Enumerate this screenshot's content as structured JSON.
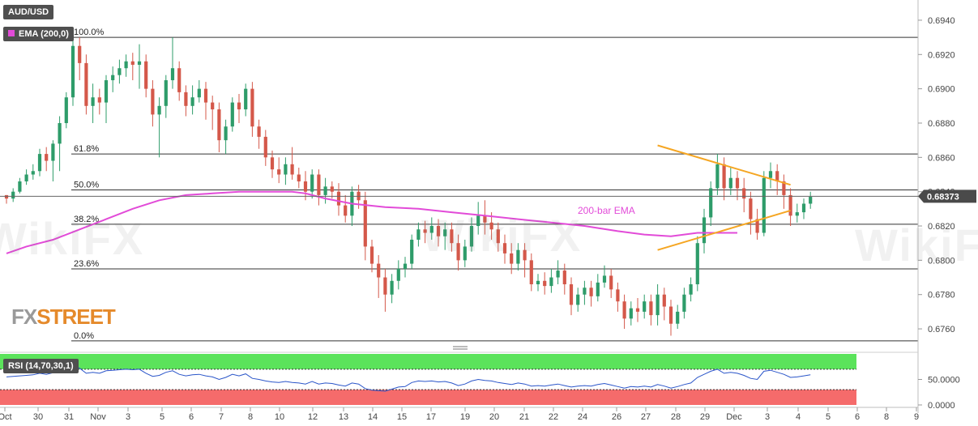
{
  "header": {
    "symbol": "AUD/USD",
    "ema_legend": "EMA (200,0)",
    "rsi_legend": "RSI (14,70,30,1)"
  },
  "brand": {
    "part1": "FX",
    "part2": "STREET"
  },
  "watermark": "WikiFX",
  "colors": {
    "bull": "#2e9c6a",
    "bear": "#d4584a",
    "ema": "#e24bd8",
    "trendline": "#f5a623",
    "rsi_line": "#2a55c9",
    "rsi_overbought": "#5be35b",
    "rsi_oversold": "#f56b6b",
    "price_tag": "#4a4a4a"
  },
  "chart_data": {
    "type": "candlestick",
    "title": "AUD/USD",
    "price_ticks": [
      "0.6940",
      "0.6920",
      "0.6900",
      "0.6880",
      "0.6860",
      "0.6840",
      "0.6820",
      "0.6800",
      "0.6780",
      "0.6760"
    ],
    "ylim": [
      0.6752,
      0.6948
    ],
    "current_price": "0.68373",
    "x_tick_labels": [
      "Oct",
      "30",
      "31",
      "Nov",
      "3",
      "5",
      "6",
      "7",
      "8",
      "10",
      "12",
      "13",
      "14",
      "15",
      "17",
      "19",
      "20",
      "21",
      "22",
      "24",
      "26",
      "27",
      "28",
      "29",
      "Dec",
      "3",
      "4",
      "5",
      "6",
      "8",
      "9"
    ],
    "fibonacci": [
      {
        "label": "100.0%",
        "level": 0.693
      },
      {
        "label": "61.8%",
        "level": 0.6862
      },
      {
        "label": "50.0%",
        "level": 0.6841
      },
      {
        "label": "38.2%",
        "level": 0.6821
      },
      {
        "label": "23.6%",
        "level": 0.6795
      },
      {
        "label": "0.0%",
        "level": 0.6753
      }
    ],
    "ema_label": "200-bar EMA",
    "ema_points": [
      [
        0,
        0.6804
      ],
      [
        3,
        0.6808
      ],
      [
        7,
        0.6812
      ],
      [
        11,
        0.6818
      ],
      [
        15,
        0.6824
      ],
      [
        19,
        0.683
      ],
      [
        23,
        0.6835
      ],
      [
        27,
        0.6838
      ],
      [
        31,
        0.6839
      ],
      [
        35,
        0.684
      ],
      [
        39,
        0.684
      ],
      [
        43,
        0.684
      ],
      [
        45,
        0.6839
      ],
      [
        48,
        0.6836
      ],
      [
        52,
        0.6833
      ],
      [
        57,
        0.6831
      ],
      [
        62,
        0.683
      ],
      [
        67,
        0.6828
      ],
      [
        72,
        0.6826
      ],
      [
        77,
        0.6824
      ],
      [
        82,
        0.6822
      ],
      [
        87,
        0.682
      ],
      [
        92,
        0.6817
      ],
      [
        96,
        0.6815
      ],
      [
        100,
        0.6814
      ],
      [
        104,
        0.6816
      ],
      [
        108,
        0.6816
      ],
      [
        110,
        0.6816
      ]
    ],
    "trendlines": [
      {
        "from": [
          98,
          0.6867
        ],
        "to": [
          118,
          0.6844
        ]
      },
      {
        "from": [
          98,
          0.6806
        ],
        "to": [
          118,
          0.6829
        ]
      }
    ],
    "candles": [
      [
        0.6838,
        0.6836,
        0.6838,
        0.6833
      ],
      [
        0.6836,
        0.684,
        0.6842,
        0.6834
      ],
      [
        0.684,
        0.6846,
        0.6848,
        0.6839
      ],
      [
        0.6846,
        0.685,
        0.6853,
        0.6844
      ],
      [
        0.685,
        0.6852,
        0.6856,
        0.6847
      ],
      [
        0.6852,
        0.6862,
        0.6865,
        0.6849
      ],
      [
        0.6862,
        0.6858,
        0.6866,
        0.6852
      ],
      [
        0.6858,
        0.6868,
        0.687,
        0.6846
      ],
      [
        0.6868,
        0.688,
        0.6884,
        0.6852
      ],
      [
        0.688,
        0.6895,
        0.6898,
        0.6877
      ],
      [
        0.6895,
        0.6925,
        0.6928,
        0.689
      ],
      [
        0.6925,
        0.6915,
        0.693,
        0.6905
      ],
      [
        0.6915,
        0.689,
        0.692,
        0.6885
      ],
      [
        0.689,
        0.6895,
        0.6903,
        0.688
      ],
      [
        0.6895,
        0.6892,
        0.69,
        0.6885
      ],
      [
        0.6892,
        0.6905,
        0.6908,
        0.688
      ],
      [
        0.6905,
        0.6908,
        0.6913,
        0.6898
      ],
      [
        0.6908,
        0.6912,
        0.6917,
        0.6903
      ],
      [
        0.6912,
        0.6916,
        0.692,
        0.6907
      ],
      [
        0.6916,
        0.6914,
        0.6921,
        0.6905
      ],
      [
        0.6914,
        0.6916,
        0.6926,
        0.69
      ],
      [
        0.6916,
        0.69,
        0.692,
        0.6895
      ],
      [
        0.69,
        0.6885,
        0.6905,
        0.6878
      ],
      [
        0.6885,
        0.689,
        0.6895,
        0.686
      ],
      [
        0.689,
        0.6905,
        0.6908,
        0.6883
      ],
      [
        0.6905,
        0.6912,
        0.693,
        0.69
      ],
      [
        0.6912,
        0.6898,
        0.6916,
        0.6893
      ],
      [
        0.6898,
        0.689,
        0.6902,
        0.6884
      ],
      [
        0.689,
        0.6895,
        0.6902,
        0.6885
      ],
      [
        0.6895,
        0.69,
        0.6905,
        0.6892
      ],
      [
        0.69,
        0.6892,
        0.6904,
        0.6882
      ],
      [
        0.6892,
        0.6888,
        0.6896,
        0.6876
      ],
      [
        0.6888,
        0.687,
        0.6892,
        0.6863
      ],
      [
        0.687,
        0.6878,
        0.6882,
        0.6862
      ],
      [
        0.6878,
        0.6892,
        0.6895,
        0.6875
      ],
      [
        0.6892,
        0.6888,
        0.6897,
        0.688
      ],
      [
        0.6888,
        0.69,
        0.6903,
        0.6884
      ],
      [
        0.69,
        0.6878,
        0.6904,
        0.6872
      ],
      [
        0.6878,
        0.6872,
        0.6882,
        0.6865
      ],
      [
        0.6872,
        0.686,
        0.6876,
        0.6855
      ],
      [
        0.686,
        0.6853,
        0.6864,
        0.6848
      ],
      [
        0.6853,
        0.685,
        0.686,
        0.6845
      ],
      [
        0.685,
        0.6856,
        0.686,
        0.6844
      ],
      [
        0.6856,
        0.685,
        0.6866,
        0.6847
      ],
      [
        0.685,
        0.6846,
        0.6854,
        0.6842
      ],
      [
        0.6846,
        0.684,
        0.6852,
        0.6835
      ],
      [
        0.684,
        0.685,
        0.6853,
        0.6836
      ],
      [
        0.685,
        0.6838,
        0.6853,
        0.6832
      ],
      [
        0.6838,
        0.6843,
        0.6848,
        0.6833
      ],
      [
        0.6843,
        0.684,
        0.6846,
        0.6836
      ],
      [
        0.684,
        0.6832,
        0.6845,
        0.6826
      ],
      [
        0.6832,
        0.6826,
        0.6838,
        0.6822
      ],
      [
        0.6826,
        0.684,
        0.6843,
        0.682
      ],
      [
        0.684,
        0.6835,
        0.6844,
        0.683
      ],
      [
        0.6835,
        0.6808,
        0.684,
        0.68
      ],
      [
        0.6808,
        0.6798,
        0.6812,
        0.6793
      ],
      [
        0.6798,
        0.679,
        0.6803,
        0.6778
      ],
      [
        0.679,
        0.678,
        0.6795,
        0.677
      ],
      [
        0.678,
        0.6788,
        0.6792,
        0.6775
      ],
      [
        0.6788,
        0.6795,
        0.68,
        0.6783
      ],
      [
        0.6795,
        0.6798,
        0.6802,
        0.679
      ],
      [
        0.6798,
        0.6812,
        0.6815,
        0.6795
      ],
      [
        0.6812,
        0.6818,
        0.6822,
        0.6808
      ],
      [
        0.6818,
        0.6816,
        0.6823,
        0.681
      ],
      [
        0.6816,
        0.682,
        0.6825,
        0.6812
      ],
      [
        0.682,
        0.6814,
        0.6824,
        0.6808
      ],
      [
        0.6814,
        0.6818,
        0.6822,
        0.6806
      ],
      [
        0.6818,
        0.681,
        0.6822,
        0.6805
      ],
      [
        0.681,
        0.68,
        0.6815,
        0.6794
      ],
      [
        0.68,
        0.6808,
        0.6812,
        0.6796
      ],
      [
        0.6808,
        0.682,
        0.6825,
        0.6805
      ],
      [
        0.682,
        0.6826,
        0.6834,
        0.6815
      ],
      [
        0.6826,
        0.6822,
        0.6835,
        0.6815
      ],
      [
        0.6822,
        0.6818,
        0.6828,
        0.6812
      ],
      [
        0.6818,
        0.681,
        0.6822,
        0.6805
      ],
      [
        0.681,
        0.6804,
        0.6815,
        0.6798
      ],
      [
        0.6804,
        0.6798,
        0.681,
        0.6792
      ],
      [
        0.6798,
        0.6806,
        0.681,
        0.6794
      ],
      [
        0.6806,
        0.68,
        0.681,
        0.679
      ],
      [
        0.68,
        0.6786,
        0.6804,
        0.6782
      ],
      [
        0.6786,
        0.6788,
        0.6792,
        0.6782
      ],
      [
        0.6788,
        0.6785,
        0.6793,
        0.678
      ],
      [
        0.6785,
        0.679,
        0.6795,
        0.6781
      ],
      [
        0.679,
        0.6794,
        0.68,
        0.6786
      ],
      [
        0.6794,
        0.6786,
        0.6798,
        0.678
      ],
      [
        0.6786,
        0.6774,
        0.679,
        0.6768
      ],
      [
        0.6774,
        0.678,
        0.6784,
        0.677
      ],
      [
        0.678,
        0.6784,
        0.6788,
        0.6774
      ],
      [
        0.6784,
        0.6779,
        0.6788,
        0.6773
      ],
      [
        0.6779,
        0.6787,
        0.6792,
        0.6776
      ],
      [
        0.6787,
        0.6791,
        0.6797,
        0.6784
      ],
      [
        0.6791,
        0.6783,
        0.6795,
        0.6778
      ],
      [
        0.6783,
        0.6776,
        0.6787,
        0.677
      ],
      [
        0.6776,
        0.6766,
        0.678,
        0.676
      ],
      [
        0.6766,
        0.6772,
        0.6776,
        0.6762
      ],
      [
        0.6772,
        0.677,
        0.6778,
        0.6764
      ],
      [
        0.677,
        0.6776,
        0.678,
        0.6766
      ],
      [
        0.6776,
        0.6768,
        0.678,
        0.6762
      ],
      [
        0.6768,
        0.678,
        0.6786,
        0.6762
      ],
      [
        0.678,
        0.6773,
        0.6784,
        0.6765
      ],
      [
        0.6773,
        0.6763,
        0.6777,
        0.6756
      ],
      [
        0.6763,
        0.677,
        0.6774,
        0.676
      ],
      [
        0.677,
        0.678,
        0.6784,
        0.6766
      ],
      [
        0.678,
        0.6786,
        0.679,
        0.6776
      ],
      [
        0.6786,
        0.681,
        0.6814,
        0.6782
      ],
      [
        0.681,
        0.6825,
        0.683,
        0.6804
      ],
      [
        0.6825,
        0.6842,
        0.6846,
        0.682
      ],
      [
        0.6842,
        0.6856,
        0.6862,
        0.6838
      ],
      [
        0.6856,
        0.6842,
        0.686,
        0.6835
      ],
      [
        0.6842,
        0.6848,
        0.6854,
        0.6838
      ],
      [
        0.6848,
        0.6842,
        0.6852,
        0.6835
      ],
      [
        0.6842,
        0.6836,
        0.6848,
        0.6828
      ],
      [
        0.6836,
        0.6824,
        0.684,
        0.6815
      ],
      [
        0.6824,
        0.6816,
        0.683,
        0.6812
      ],
      [
        0.6816,
        0.6848,
        0.6852,
        0.6814
      ],
      [
        0.6848,
        0.6852,
        0.6857,
        0.6842
      ],
      [
        0.6852,
        0.6846,
        0.6856,
        0.6838
      ],
      [
        0.6846,
        0.6838,
        0.685,
        0.683
      ],
      [
        0.6838,
        0.6826,
        0.6842,
        0.682
      ],
      [
        0.6826,
        0.6828,
        0.6833,
        0.6822
      ],
      [
        0.6828,
        0.6833,
        0.6836,
        0.6824
      ],
      [
        0.6833,
        0.6837,
        0.684,
        0.683
      ]
    ],
    "rsi": {
      "levels": {
        "overbought": 70,
        "oversold": 30
      },
      "ticks": [
        "50.0000",
        "0.0000"
      ],
      "ylim": [
        0,
        100
      ],
      "values": [
        55,
        56,
        57,
        58,
        59,
        62,
        60,
        63,
        66,
        70,
        78,
        72,
        62,
        64,
        62,
        67,
        68,
        69,
        70,
        69,
        70,
        62,
        56,
        58,
        64,
        67,
        60,
        57,
        59,
        60,
        57,
        55,
        50,
        54,
        60,
        57,
        61,
        52,
        50,
        47,
        45,
        44,
        46,
        44,
        43,
        41,
        46,
        41,
        43,
        42,
        39,
        37,
        43,
        41,
        32,
        29,
        28,
        27,
        31,
        35,
        36,
        44,
        47,
        46,
        47,
        45,
        46,
        43,
        38,
        41,
        47,
        50,
        48,
        47,
        44,
        42,
        40,
        43,
        41,
        37,
        38,
        37,
        39,
        41,
        38,
        35,
        37,
        38,
        37,
        40,
        42,
        39,
        36,
        33,
        36,
        35,
        37,
        35,
        40,
        37,
        33,
        36,
        40,
        43,
        54,
        60,
        66,
        70,
        62,
        64,
        62,
        58,
        52,
        50,
        66,
        68,
        64,
        60,
        54,
        55,
        57,
        59
      ]
    }
  }
}
